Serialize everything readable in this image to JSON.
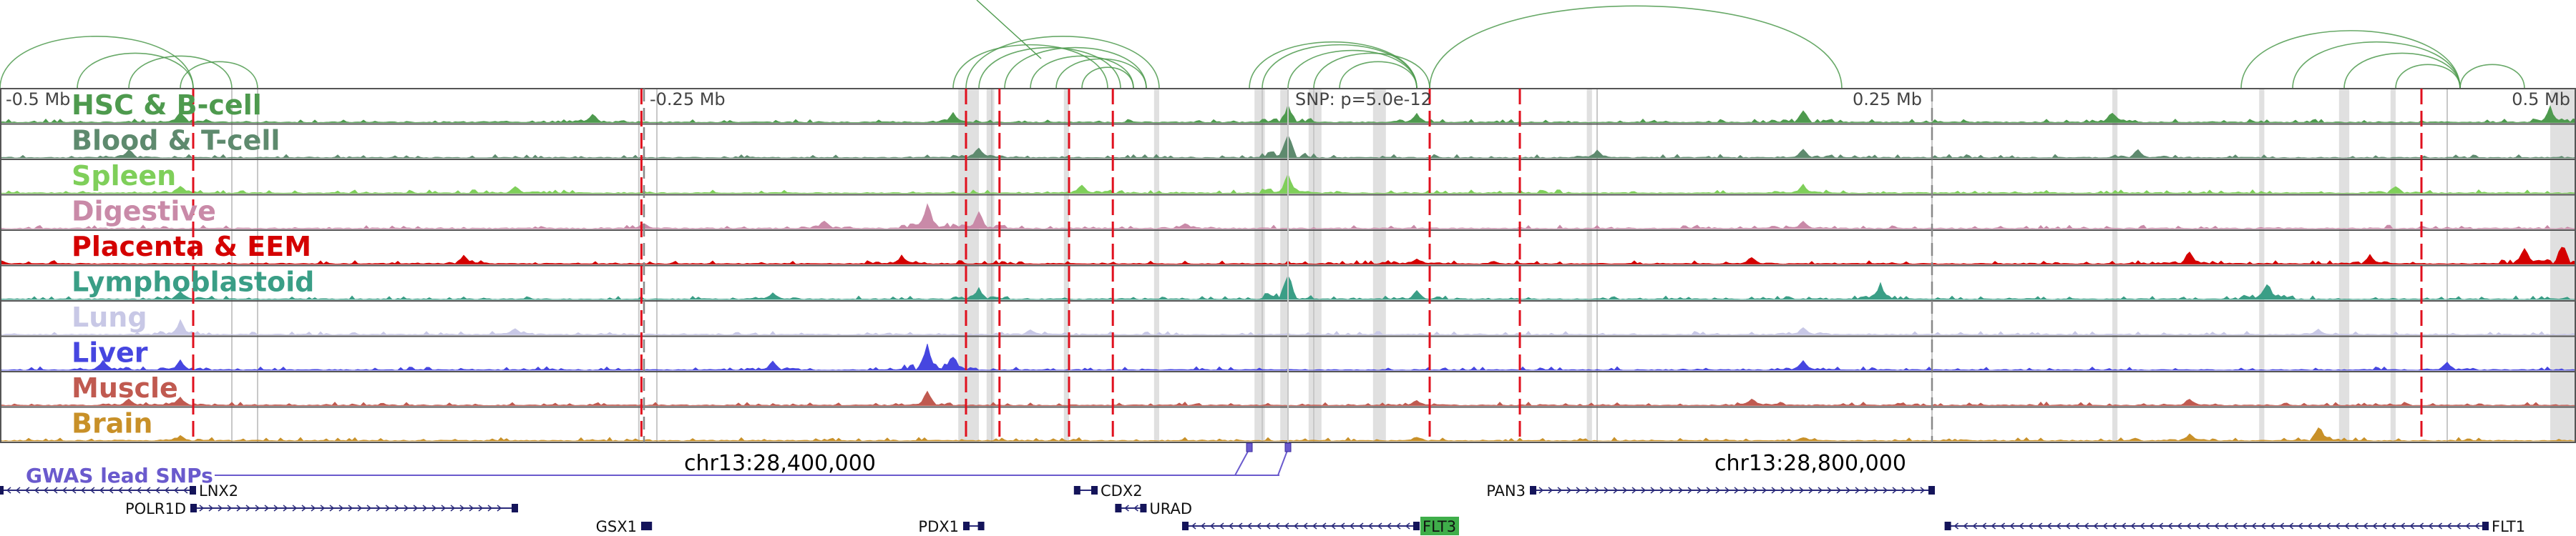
{
  "chart_data": {
    "type": "genome-browser-tracks",
    "axis": {
      "ticks": [
        {
          "pos": -0.5,
          "label": "-0.5 Mb"
        },
        {
          "pos": -0.25,
          "label": "-0.25 Mb"
        },
        {
          "pos": 0.25,
          "label": "0.25 Mb"
        },
        {
          "pos": 0.5,
          "label": "0.5 Mb"
        }
      ],
      "snp_label": "SNP: p=5.0e-12",
      "snp_pos": 0.0,
      "range_mb": [
        -0.5,
        0.5
      ]
    },
    "coordinates": [
      {
        "label": "chr13:28,400,000",
        "pos": -0.2
      },
      {
        "label": "chr13:28,800,000",
        "pos": 0.2
      }
    ],
    "tracks": [
      {
        "name": "HSC & B-cell",
        "color": "#4e9a4e",
        "peaks": [
          [
            -0.43,
            0.4
          ],
          [
            -0.27,
            0.3
          ],
          [
            -0.13,
            0.35
          ],
          [
            0.0,
            0.6
          ],
          [
            0.05,
            0.3
          ],
          [
            0.2,
            0.45
          ],
          [
            0.32,
            0.4
          ],
          [
            0.49,
            0.55
          ]
        ]
      },
      {
        "name": "Blood & T-cell",
        "color": "#5e8a6e",
        "peaks": [
          [
            -0.45,
            0.3
          ],
          [
            -0.12,
            0.4
          ],
          [
            0.0,
            0.9
          ],
          [
            0.12,
            0.3
          ],
          [
            0.2,
            0.3
          ],
          [
            0.33,
            0.3
          ]
        ]
      },
      {
        "name": "Spleen",
        "color": "#7fcf5a",
        "peaks": [
          [
            -0.43,
            0.3
          ],
          [
            -0.3,
            0.25
          ],
          [
            -0.08,
            0.3
          ],
          [
            0.0,
            0.7
          ],
          [
            0.2,
            0.3
          ],
          [
            0.43,
            0.3
          ]
        ]
      },
      {
        "name": "Digestive",
        "color": "#c98aa8",
        "peaks": [
          [
            -0.25,
            0.2
          ],
          [
            -0.18,
            0.3
          ],
          [
            -0.14,
            0.9
          ],
          [
            -0.12,
            0.55
          ],
          [
            -0.04,
            0.2
          ],
          [
            0.2,
            0.25
          ]
        ]
      },
      {
        "name": "Placenta & EEM",
        "color": "#d40000",
        "peaks": [
          [
            -0.5,
            0.15
          ],
          [
            -0.32,
            0.3
          ],
          [
            -0.15,
            0.3
          ],
          [
            0.05,
            0.2
          ],
          [
            0.18,
            0.25
          ],
          [
            0.35,
            0.45
          ],
          [
            0.42,
            0.35
          ],
          [
            0.48,
            0.6
          ],
          [
            0.495,
            0.8
          ]
        ]
      },
      {
        "name": "Lymphoblastoid",
        "color": "#3a9e86",
        "peaks": [
          [
            -0.43,
            0.3
          ],
          [
            -0.2,
            0.25
          ],
          [
            -0.12,
            0.4
          ],
          [
            0.0,
            0.95
          ],
          [
            0.05,
            0.3
          ],
          [
            0.23,
            0.55
          ],
          [
            0.38,
            0.65
          ]
        ]
      },
      {
        "name": "Lung",
        "color": "#c8c8e6",
        "peaks": [
          [
            -0.43,
            0.5
          ],
          [
            -0.3,
            0.25
          ],
          [
            -0.1,
            0.2
          ],
          [
            0.2,
            0.25
          ],
          [
            0.4,
            0.2
          ]
        ]
      },
      {
        "name": "Liver",
        "color": "#4646e0",
        "peaks": [
          [
            -0.46,
            0.35
          ],
          [
            -0.43,
            0.35
          ],
          [
            -0.2,
            0.3
          ],
          [
            -0.14,
            0.9
          ],
          [
            -0.13,
            0.55
          ],
          [
            0.2,
            0.35
          ],
          [
            0.45,
            0.3
          ]
        ]
      },
      {
        "name": "Muscle",
        "color": "#c05a50",
        "peaks": [
          [
            -0.45,
            0.25
          ],
          [
            -0.43,
            0.3
          ],
          [
            -0.14,
            0.5
          ],
          [
            0.05,
            0.2
          ],
          [
            0.18,
            0.25
          ],
          [
            0.35,
            0.25
          ]
        ]
      },
      {
        "name": "Brain",
        "color": "#c89028",
        "peaks": [
          [
            -0.43,
            0.2
          ],
          [
            0.05,
            0.15
          ],
          [
            0.2,
            0.15
          ],
          [
            0.35,
            0.25
          ],
          [
            0.4,
            0.55
          ]
        ]
      }
    ],
    "gwas_label": "GWAS lead SNPs",
    "genes": [
      {
        "name": "LNX2",
        "start": -0.5,
        "end": -0.425,
        "row": 0,
        "strand": "-",
        "label_side": "right"
      },
      {
        "name": "POLR1D",
        "start": -0.425,
        "end": -0.3,
        "row": 1,
        "strand": "+",
        "label_side": "left"
      },
      {
        "name": "GSX1",
        "start": -0.25,
        "end": -0.248,
        "row": 2,
        "strand": "+",
        "label_side": "left"
      },
      {
        "name": "PDX1",
        "start": -0.125,
        "end": -0.119,
        "row": 2,
        "strand": "+",
        "label_side": "left"
      },
      {
        "name": "CDX2",
        "start": -0.082,
        "end": -0.075,
        "row": 0,
        "strand": "-",
        "label_side": "right"
      },
      {
        "name": "URAD",
        "start": -0.066,
        "end": -0.056,
        "row": 1,
        "strand": "-",
        "label_side": "right"
      },
      {
        "name": "FLT3",
        "start": -0.04,
        "end": 0.05,
        "row": 2,
        "strand": "-",
        "label_side": "right",
        "highlight": true
      },
      {
        "name": "PAN3",
        "start": 0.095,
        "end": 0.25,
        "row": 0,
        "strand": "+",
        "label_side": "left"
      },
      {
        "name": "FLT1",
        "start": 0.256,
        "end": 0.465,
        "row": 2,
        "strand": "-",
        "label_side": "right"
      }
    ],
    "red_marks": [
      -0.425,
      -0.251,
      -0.125,
      -0.112,
      -0.085,
      -0.068,
      0.055,
      0.09,
      0.44
    ],
    "grey_bands": [
      [
        -0.128,
        -0.12
      ],
      [
        -0.117,
        -0.114
      ],
      [
        -0.087,
        -0.085
      ],
      [
        -0.052,
        -0.05
      ],
      [
        -0.013,
        -0.009
      ],
      [
        -0.003,
        0.0
      ],
      [
        0.008,
        0.013
      ],
      [
        0.033,
        0.038
      ],
      [
        0.116,
        0.118
      ],
      [
        0.32,
        0.322
      ],
      [
        0.377,
        0.379
      ],
      [
        0.408,
        0.412
      ],
      [
        0.428,
        0.43
      ],
      [
        0.49,
        0.5
      ]
    ],
    "grey_lines": [
      -0.41,
      -0.4,
      -0.245,
      -0.252,
      -0.115,
      -0.01,
      0.01,
      0.12,
      0.25,
      0.45
    ],
    "arcs": [
      [
        -0.5,
        -0.425
      ],
      [
        -0.47,
        -0.425
      ],
      [
        -0.45,
        -0.41
      ],
      [
        -0.43,
        -0.4
      ],
      [
        -0.13,
        -0.07
      ],
      [
        -0.12,
        -0.065
      ],
      [
        -0.11,
        -0.055
      ],
      [
        -0.1,
        -0.06
      ],
      [
        -0.125,
        -0.05
      ],
      [
        -0.09,
        -0.055
      ],
      [
        -0.08,
        -0.06
      ],
      [
        -0.015,
        0.05
      ],
      [
        -0.01,
        0.05
      ],
      [
        0.0,
        0.05
      ],
      [
        0.01,
        0.055
      ],
      [
        0.02,
        0.05
      ],
      [
        0.055,
        0.215
      ],
      [
        0.37,
        0.455
      ],
      [
        0.39,
        0.455
      ],
      [
        0.41,
        0.455
      ],
      [
        0.43,
        0.455
      ],
      [
        0.455,
        0.48
      ]
    ],
    "gwas_snps": [
      -0.015,
      0.0
    ]
  }
}
